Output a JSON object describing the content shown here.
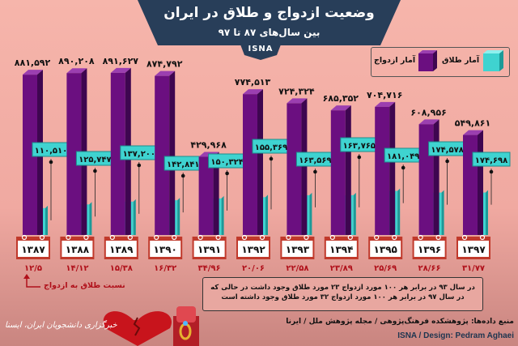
{
  "header": {
    "title": "وضعیت ازدواج و طلاق در ایران",
    "subtitle": "بین سال‌های ۸۷ تا ۹۷",
    "badge": "ISNA"
  },
  "legend": {
    "divorce": "آمار طلاق",
    "marriage": "آمار ازدواج"
  },
  "colors": {
    "marriage": "#6b0f80",
    "divorce": "#3fd3d0",
    "background": "#f4b1a8",
    "banner": "#283e59",
    "ratio": "#b0101a"
  },
  "chart_data": {
    "type": "bar",
    "categories": [
      "۱۳۸۷",
      "۱۳۸۸",
      "۱۳۸۹",
      "۱۳۹۰",
      "۱۳۹۱",
      "۱۳۹۲",
      "۱۳۹۳",
      "۱۳۹۴",
      "۱۳۹۵",
      "۱۳۹۶",
      "۱۳۹۷"
    ],
    "series": [
      {
        "name": "آمار ازدواج",
        "values": [
          881592,
          890208,
          891627,
          874792,
          429968,
          774513,
          724324,
          685352,
          704716,
          608956,
          549861
        ],
        "labels": [
          "۸۸۱,۵۹۲",
          "۸۹۰,۲۰۸",
          "۸۹۱,۶۲۷",
          "۸۷۴,۷۹۲",
          "۴۲۹,۹۶۸",
          "۷۷۴,۵۱۳",
          "۷۲۴,۳۲۴",
          "۶۸۵,۳۵۲",
          "۷۰۴,۷۱۶",
          "۶۰۸,۹۵۶",
          "۵۴۹,۸۶۱"
        ]
      },
      {
        "name": "آمار طلاق",
        "values": [
          110510,
          125747,
          137200,
          142841,
          150324,
          155369,
          163569,
          163765,
          181049,
          174578,
          174698
        ],
        "labels": [
          "۱۱۰,۵۱۰",
          "۱۲۵,۷۴۷",
          "۱۳۷,۲۰۰",
          "۱۴۲,۸۴۱",
          "۱۵۰,۳۲۴",
          "۱۵۵,۳۶۹",
          "۱۶۳,۵۶۹",
          "۱۶۳,۷۶۵",
          "۱۸۱,۰۴۹",
          "۱۷۴,۵۷۸",
          "۱۷۴,۶۹۸"
        ]
      }
    ],
    "ratio": {
      "name": "نسبت طلاق به ازدواج",
      "values": [
        12.5,
        14.12,
        15.38,
        16.32,
        34.96,
        20.06,
        22.58,
        23.89,
        25.69,
        28.66,
        31.77
      ],
      "labels": [
        "۱۲/۵",
        "۱۴/۱۲",
        "۱۵/۳۸",
        "۱۶/۳۲",
        "۳۴/۹۶",
        "۲۰/۰۶",
        "۲۲/۵۸",
        "۲۳/۸۹",
        "۲۵/۶۹",
        "۲۸/۶۶",
        "۳۱/۷۷"
      ]
    },
    "ylim": [
      0,
      900000
    ],
    "legend": "top-right"
  },
  "note": {
    "line1": "در سال ۹۳ در برابر هر ۱۰۰ مورد ازدواج ۲۳ مورد طلاق وجود داشت در حالی که",
    "line2": "در سال ۹۷ در برابر هر ۱۰۰ مورد ازدواج ۳۲ مورد طلاق وجود داشته است"
  },
  "footer": {
    "source": "منبع داده‌ها: پژوهشکده فرهنگ‌پژوهی / مجله پژوهش ملل / ایرنا",
    "design": "ISNA / Design: Pedram Aghaei",
    "agency": "خبرگزاری دانشجویان ایران، ایسنا"
  }
}
